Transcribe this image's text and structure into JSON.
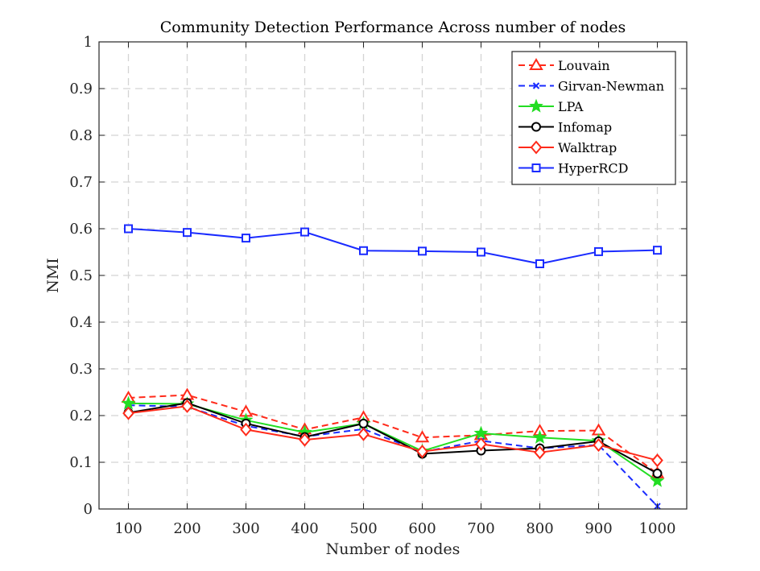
{
  "chart_data": {
    "type": "line",
    "title": "Community Detection Performance Across number of nodes",
    "xlabel": "Number of nodes",
    "ylabel": "NMI",
    "categories": [
      "100",
      "200",
      "300",
      "400",
      "500",
      "600",
      "700",
      "800",
      "900",
      "1000"
    ],
    "x": [
      100,
      200,
      300,
      400,
      500,
      600,
      700,
      800,
      900,
      1000
    ],
    "xlim": [
      50,
      1050
    ],
    "ylim": [
      0,
      1
    ],
    "yticks": [
      "0",
      "0.1",
      "0.2",
      "0.3",
      "0.4",
      "0.5",
      "0.6",
      "0.7",
      "0.8",
      "0.9",
      "1"
    ],
    "grid": true,
    "legend_position": "top-right",
    "series": [
      {
        "name": "Louvain",
        "color": "#ff2a1a",
        "dash": "dashed",
        "marker": "triangle",
        "values": [
          0.238,
          0.244,
          0.208,
          0.17,
          0.196,
          0.153,
          0.158,
          0.167,
          0.168,
          0.076
        ]
      },
      {
        "name": "Girvan-Newman",
        "color": "#1a2bff",
        "dash": "dashed",
        "marker": "x",
        "values": [
          0.222,
          0.219,
          0.178,
          0.155,
          0.171,
          0.122,
          0.146,
          0.13,
          0.137,
          0.006
        ]
      },
      {
        "name": "LPA",
        "color": "#22dd22",
        "dash": "solid",
        "marker": "star",
        "values": [
          0.226,
          0.225,
          0.19,
          0.164,
          0.183,
          0.124,
          0.162,
          0.153,
          0.146,
          0.06
        ]
      },
      {
        "name": "Infomap",
        "color": "#000000",
        "dash": "solid",
        "marker": "circle",
        "values": [
          0.206,
          0.227,
          0.183,
          0.154,
          0.183,
          0.118,
          0.125,
          0.13,
          0.145,
          0.076
        ]
      },
      {
        "name": "Walktrap",
        "color": "#ff2a1a",
        "dash": "solid",
        "marker": "diamond",
        "values": [
          0.205,
          0.22,
          0.17,
          0.148,
          0.16,
          0.123,
          0.139,
          0.121,
          0.137,
          0.104
        ]
      },
      {
        "name": "HyperRCD",
        "color": "#1a2bff",
        "dash": "solid",
        "marker": "square",
        "values": [
          0.6,
          0.592,
          0.58,
          0.593,
          0.553,
          0.552,
          0.55,
          0.525,
          0.551,
          0.554
        ]
      }
    ]
  }
}
